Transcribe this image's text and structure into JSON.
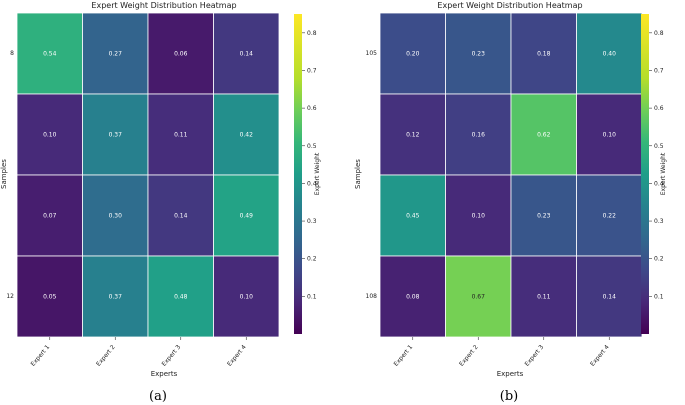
{
  "chart_data": [
    {
      "type": "heatmap",
      "panel_label": "(a)",
      "title": "Expert Weight Distribution Heatmap",
      "xlabel": "Experts",
      "ylabel": "Samples",
      "x_categories": [
        "Expert 1",
        "Expert 2",
        "Expert 3",
        "Expert 4"
      ],
      "y_tick_labels": [
        "8",
        "",
        "",
        "12"
      ],
      "values": [
        [
          0.54,
          0.27,
          0.06,
          0.14
        ],
        [
          0.1,
          0.37,
          0.11,
          0.42
        ],
        [
          0.07,
          0.3,
          0.14,
          0.49
        ],
        [
          0.05,
          0.37,
          0.48,
          0.1
        ]
      ],
      "colormap": "viridis",
      "colorbar": {
        "label": "Expert Weight",
        "range": [
          0.0,
          0.85
        ],
        "ticks": [
          "0.1",
          "0.2",
          "0.3",
          "0.4",
          "0.5",
          "0.6",
          "0.7",
          "0.8"
        ]
      }
    },
    {
      "type": "heatmap",
      "panel_label": "(b)",
      "title": "Expert Weight Distribution Heatmap",
      "xlabel": "Experts",
      "ylabel": "Samples",
      "x_categories": [
        "Expert 1",
        "Expert 2",
        "Expert 3",
        "Expert 4"
      ],
      "y_tick_labels": [
        "105",
        "",
        "",
        "108"
      ],
      "values": [
        [
          0.2,
          0.23,
          0.18,
          0.4
        ],
        [
          0.12,
          0.16,
          0.62,
          0.1
        ],
        [
          0.45,
          0.1,
          0.23,
          0.22
        ],
        [
          0.08,
          0.67,
          0.11,
          0.14
        ]
      ],
      "colormap": "viridis",
      "colorbar": {
        "label": "Expert Weight",
        "range": [
          0.0,
          0.85
        ],
        "ticks": [
          "0.1",
          "0.2",
          "0.3",
          "0.4",
          "0.5",
          "0.6",
          "0.7",
          "0.8"
        ]
      }
    }
  ]
}
